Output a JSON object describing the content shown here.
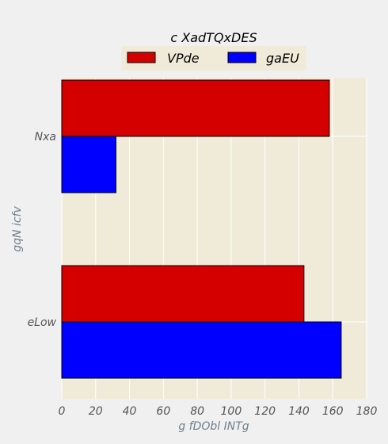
{
  "chart_data": {
    "type": "bar",
    "orientation": "horizontal",
    "title": "c XadTQxDES",
    "xlabel": "g fDObl INTg",
    "ylabel": "gqN icfv",
    "categories": [
      "Nxa",
      "eLow"
    ],
    "series": [
      {
        "name": "VPde",
        "values": [
          158,
          143
        ],
        "color": "#d40000"
      },
      {
        "name": "gaEU",
        "values": [
          32,
          165
        ],
        "color": "#0000ff"
      }
    ],
    "xlim": [
      0,
      180
    ],
    "xticks": [
      0,
      20,
      40,
      60,
      80,
      100,
      120,
      140,
      160,
      180
    ],
    "grid": true,
    "legend_position": "top-center",
    "colors": {
      "figure_bg": "#f0f0f0",
      "plot_bg": "#f0ebd9",
      "legend_bg": "#f0ebd9",
      "grid": "#ffffff",
      "text": "#000000",
      "tick_text": "#555555",
      "axis_label_text": "#6f7f8c"
    }
  }
}
